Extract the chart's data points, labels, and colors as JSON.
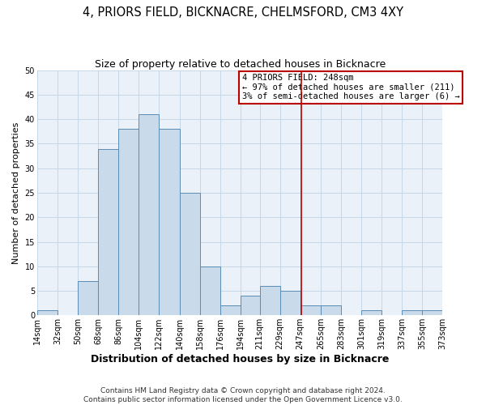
{
  "title": "4, PRIORS FIELD, BICKNACRE, CHELMSFORD, CM3 4XY",
  "subtitle": "Size of property relative to detached houses in Bicknacre",
  "xlabel": "Distribution of detached houses by size in Bicknacre",
  "ylabel": "Number of detached properties",
  "bin_edges": [
    14,
    32,
    50,
    68,
    86,
    104,
    122,
    140,
    158,
    176,
    194,
    211,
    229,
    247,
    265,
    283,
    301,
    319,
    337,
    355,
    373
  ],
  "bin_labels": [
    "14sqm",
    "32sqm",
    "50sqm",
    "68sqm",
    "86sqm",
    "104sqm",
    "122sqm",
    "140sqm",
    "158sqm",
    "176sqm",
    "194sqm",
    "211sqm",
    "229sqm",
    "247sqm",
    "265sqm",
    "283sqm",
    "301sqm",
    "319sqm",
    "337sqm",
    "355sqm",
    "373sqm"
  ],
  "counts": [
    1,
    0,
    7,
    34,
    38,
    41,
    38,
    25,
    10,
    2,
    4,
    6,
    5,
    2,
    2,
    0,
    1,
    0,
    1,
    1
  ],
  "bar_color": "#c9daea",
  "bar_edge_color": "#5a8db5",
  "grid_color": "#c5d8e8",
  "bg_color": "#eaf1f8",
  "vline_x": 248,
  "vline_color": "#bb0000",
  "annotation_title": "4 PRIORS FIELD: 248sqm",
  "annotation_line1": "← 97% of detached houses are smaller (211)",
  "annotation_line2": "3% of semi-detached houses are larger (6) →",
  "annotation_box_color": "#bb0000",
  "ylim": [
    0,
    50
  ],
  "yticks": [
    0,
    5,
    10,
    15,
    20,
    25,
    30,
    35,
    40,
    45,
    50
  ],
  "footer_line1": "Contains HM Land Registry data © Crown copyright and database right 2024.",
  "footer_line2": "Contains public sector information licensed under the Open Government Licence v3.0.",
  "title_fontsize": 10.5,
  "subtitle_fontsize": 9,
  "xlabel_fontsize": 9,
  "ylabel_fontsize": 8,
  "tick_fontsize": 7,
  "footer_fontsize": 6.5,
  "ann_fontsize": 7.5
}
